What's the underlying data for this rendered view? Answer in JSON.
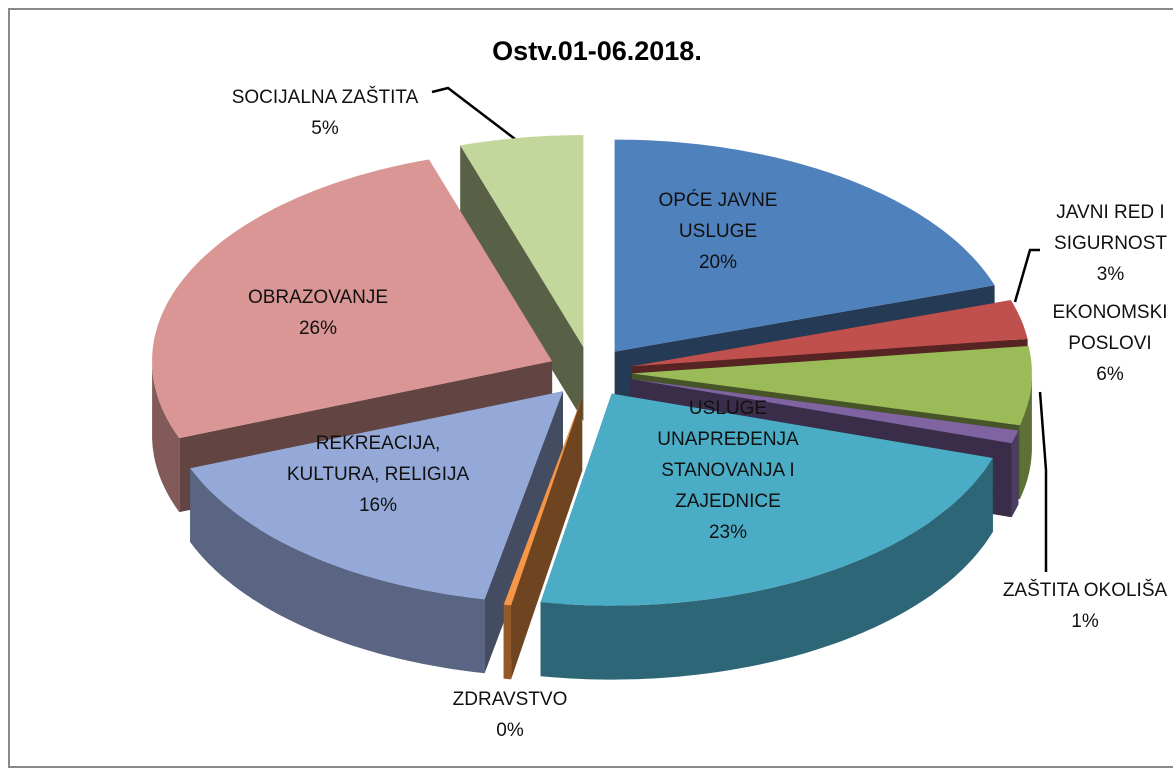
{
  "chart_data": {
    "type": "pie3d",
    "title": "Ostv.01-06.2018.",
    "categories": [
      "OPĆE JAVNE USLUGE",
      "JAVNI RED I SIGURNOST",
      "EKONOMSKI POSLOVI",
      "ZAŠTITA OKOLIŠA",
      "USLUGE UNAPREĐENJA STANOVANJA I ZAJEDNICE",
      "ZDRAVSTVO",
      "REKREACIJA, KULTURA, RELIGIJA",
      "OBRAZOVANJE",
      "SOCIJALNA ZAŠTITA"
    ],
    "values": [
      20,
      3,
      6,
      1,
      23,
      0.3,
      16,
      26,
      5
    ],
    "value_labels": [
      "20%",
      "3%",
      "6%",
      "1%",
      "23%",
      "0%",
      "16%",
      "26%",
      "5%"
    ],
    "colors": [
      "#4f81bd",
      "#c0504d",
      "#9bbb59",
      "#8064a2",
      "#4bacc6",
      "#f79646",
      "#95a9d8",
      "#d99694",
      "#c3d69b"
    ]
  }
}
